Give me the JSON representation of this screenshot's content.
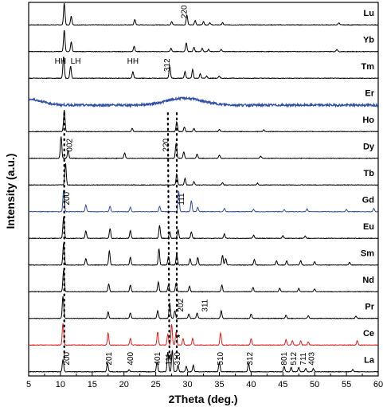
{
  "chart_data": {
    "type": "line",
    "title": "",
    "xlabel": "2Theta (deg.)",
    "ylabel": "Intensity (a.u.)",
    "xlim": [
      5,
      60
    ],
    "x_ticks": [
      5,
      10,
      15,
      20,
      25,
      30,
      35,
      40,
      45,
      50,
      55,
      60
    ],
    "x_tick_labels": [
      "5",
      "10",
      "15",
      "20",
      "25",
      "30",
      "35",
      "40",
      "45",
      "50",
      "55",
      "60"
    ],
    "grid": false,
    "legend": "none (series labeled at right edge)",
    "series": [
      {
        "name": "Lu",
        "color": "#000000",
        "kind": "crystalline",
        "peaks": [
          [
            10.6,
            1.0
          ],
          [
            11.7,
            0.4
          ],
          [
            21.7,
            0.25
          ],
          [
            27.5,
            0.15
          ],
          [
            29.9,
            0.45
          ],
          [
            31.2,
            0.2
          ],
          [
            32.5,
            0.15
          ],
          [
            33.5,
            0.1
          ],
          [
            35.5,
            0.1
          ],
          [
            53.8,
            0.1
          ]
        ]
      },
      {
        "name": "Yb",
        "color": "#000000",
        "kind": "crystalline",
        "peaks": [
          [
            10.6,
            1.0
          ],
          [
            11.7,
            0.45
          ],
          [
            21.6,
            0.25
          ],
          [
            27.4,
            0.15
          ],
          [
            29.8,
            0.4
          ],
          [
            31.0,
            0.2
          ],
          [
            32.3,
            0.15
          ],
          [
            33.3,
            0.1
          ],
          [
            35.3,
            0.1
          ],
          [
            53.5,
            0.1
          ]
        ]
      },
      {
        "name": "Tm",
        "color": "#000000",
        "kind": "crystalline",
        "peaks": [
          [
            10.5,
            1.0
          ],
          [
            11.6,
            0.55
          ],
          [
            21.4,
            0.3
          ],
          [
            27.2,
            0.55
          ],
          [
            29.6,
            0.3
          ],
          [
            30.8,
            0.4
          ],
          [
            32.0,
            0.2
          ],
          [
            33.0,
            0.1
          ],
          [
            35.0,
            0.1
          ]
        ]
      },
      {
        "name": "Er",
        "color": "#3050a8",
        "kind": "amorphous",
        "humps": [
          [
            5,
            0.6,
            3.0
          ],
          [
            29.5,
            0.7,
            4.0
          ]
        ]
      },
      {
        "name": "Ho",
        "color": "#000000",
        "kind": "crystalline",
        "peaks": [
          [
            10.6,
            1.0
          ],
          [
            21.3,
            0.15
          ],
          [
            28.3,
            0.45
          ],
          [
            29.5,
            0.2
          ],
          [
            31.0,
            0.15
          ],
          [
            35.0,
            0.1
          ],
          [
            42.0,
            0.08
          ]
        ]
      },
      {
        "name": "Dy",
        "color": "#000000",
        "kind": "crystalline",
        "peaks": [
          [
            10.1,
            1.0
          ],
          [
            11.2,
            0.35
          ],
          [
            20.1,
            0.25
          ],
          [
            28.2,
            0.7
          ],
          [
            29.4,
            0.3
          ],
          [
            31.5,
            0.2
          ],
          [
            35.0,
            0.15
          ],
          [
            41.5,
            0.1
          ]
        ]
      },
      {
        "name": "Tb",
        "color": "#000000",
        "kind": "crystalline",
        "peaks": [
          [
            10.8,
            1.0
          ],
          [
            28.3,
            0.5
          ],
          [
            29.6,
            0.3
          ],
          [
            31.0,
            0.15
          ],
          [
            35.5,
            0.1
          ],
          [
            41.0,
            0.08
          ]
        ]
      },
      {
        "name": "Gd",
        "color": "#3050a8",
        "kind": "crystalline",
        "peaks": [
          [
            10.5,
            1.0
          ],
          [
            14.0,
            0.3
          ],
          [
            17.8,
            0.25
          ],
          [
            21.0,
            0.2
          ],
          [
            25.6,
            0.25
          ],
          [
            28.6,
            0.95
          ],
          [
            30.6,
            0.5
          ],
          [
            31.6,
            0.2
          ],
          [
            35.8,
            0.15
          ],
          [
            40.4,
            0.1
          ],
          [
            45.2,
            0.1
          ],
          [
            48.8,
            0.12
          ],
          [
            55.0,
            0.1
          ],
          [
            59.3,
            0.15
          ]
        ]
      },
      {
        "name": "Eu",
        "color": "#000000",
        "kind": "crystalline",
        "peaks": [
          [
            10.5,
            1.0
          ],
          [
            14.0,
            0.35
          ],
          [
            17.8,
            0.45
          ],
          [
            21.0,
            0.35
          ],
          [
            25.6,
            0.6
          ],
          [
            27.2,
            0.3
          ],
          [
            28.5,
            0.4
          ],
          [
            30.6,
            0.3
          ],
          [
            35.8,
            0.2
          ],
          [
            40.4,
            0.15
          ],
          [
            45.0,
            0.12
          ],
          [
            48.5,
            0.1
          ]
        ]
      },
      {
        "name": "Sm",
        "color": "#000000",
        "kind": "crystalline",
        "peaks": [
          [
            10.5,
            1.0
          ],
          [
            14.0,
            0.3
          ],
          [
            17.7,
            0.65
          ],
          [
            21.0,
            0.35
          ],
          [
            25.5,
            0.75
          ],
          [
            27.0,
            0.4
          ],
          [
            28.3,
            0.5
          ],
          [
            30.4,
            0.3
          ],
          [
            31.6,
            0.35
          ],
          [
            35.5,
            0.45
          ],
          [
            36.0,
            0.3
          ],
          [
            40.5,
            0.25
          ],
          [
            44.0,
            0.2
          ],
          [
            45.6,
            0.2
          ],
          [
            47.8,
            0.2
          ],
          [
            50.0,
            0.15
          ],
          [
            55.5,
            0.12
          ]
        ]
      },
      {
        "name": "Nd",
        "color": "#000000",
        "kind": "crystalline",
        "peaks": [
          [
            10.5,
            1.0
          ],
          [
            17.6,
            0.35
          ],
          [
            21.0,
            0.3
          ],
          [
            25.4,
            0.45
          ],
          [
            27.0,
            0.3
          ],
          [
            28.2,
            0.4
          ],
          [
            30.3,
            0.25
          ],
          [
            35.4,
            0.3
          ],
          [
            40.3,
            0.2
          ],
          [
            44.5,
            0.15
          ],
          [
            47.5,
            0.15
          ],
          [
            50.0,
            0.12
          ]
        ]
      },
      {
        "name": "Pr",
        "color": "#000000",
        "kind": "crystalline",
        "peaks": [
          [
            10.4,
            1.0
          ],
          [
            17.5,
            0.3
          ],
          [
            21.0,
            0.25
          ],
          [
            25.3,
            0.35
          ],
          [
            27.2,
            0.7
          ],
          [
            28.0,
            0.35
          ],
          [
            30.2,
            0.2
          ],
          [
            31.5,
            0.25
          ],
          [
            35.3,
            0.35
          ],
          [
            40.0,
            0.2
          ],
          [
            45.5,
            0.15
          ],
          [
            49.0,
            0.12
          ],
          [
            56.5,
            0.1
          ]
        ]
      },
      {
        "name": "Ce",
        "color": "#e02020",
        "kind": "crystalline",
        "peaks": [
          [
            10.4,
            1.0
          ],
          [
            17.5,
            0.55
          ],
          [
            21.0,
            0.3
          ],
          [
            25.3,
            0.6
          ],
          [
            26.9,
            0.5
          ],
          [
            27.5,
            0.95
          ],
          [
            28.2,
            0.6
          ],
          [
            29.3,
            0.3
          ],
          [
            30.8,
            0.3
          ],
          [
            35.2,
            0.55
          ],
          [
            40.0,
            0.3
          ],
          [
            45.5,
            0.25
          ],
          [
            46.5,
            0.2
          ],
          [
            47.8,
            0.2
          ],
          [
            49.0,
            0.15
          ],
          [
            56.7,
            0.2
          ]
        ]
      },
      {
        "name": "La",
        "color": "#000000",
        "kind": "crystalline",
        "peaks": [
          [
            10.4,
            0.55
          ],
          [
            17.4,
            0.4
          ],
          [
            20.8,
            0.1
          ],
          [
            25.2,
            0.45
          ],
          [
            26.9,
            0.9
          ],
          [
            27.6,
            1.0
          ],
          [
            28.5,
            0.3
          ],
          [
            29.8,
            0.25
          ],
          [
            30.9,
            0.3
          ],
          [
            35.0,
            0.45
          ],
          [
            39.6,
            0.4
          ],
          [
            45.2,
            0.25
          ],
          [
            46.3,
            0.2
          ],
          [
            47.5,
            0.2
          ],
          [
            48.6,
            0.15
          ],
          [
            49.8,
            0.15
          ],
          [
            56.0,
            0.1
          ]
        ]
      }
    ],
    "annotations": [
      {
        "series": "Lu",
        "text": "220",
        "x": 29.9,
        "rotated": true
      },
      {
        "series": "Tm",
        "text": "HH",
        "x": 10.0,
        "rotated": false
      },
      {
        "series": "Tm",
        "text": "LH",
        "x": 12.4,
        "rotated": false
      },
      {
        "series": "Tm",
        "text": "HH",
        "x": 21.4,
        "rotated": false
      },
      {
        "series": "Tm",
        "text": "312",
        "x": 27.2,
        "rotated": true
      },
      {
        "series": "Dy",
        "text": "002",
        "x": 11.8,
        "rotated": true
      },
      {
        "series": "Dy",
        "text": "220",
        "x": 27.0,
        "rotated": true
      },
      {
        "series": "Gd",
        "text": "200",
        "x": 11.4,
        "rotated": true
      },
      {
        "series": "Gd",
        "text": "111",
        "x": 29.4,
        "rotated": true
      },
      {
        "series": "Pr",
        "text": "202",
        "x": 29.3,
        "rotated": true
      },
      {
        "series": "Pr",
        "text": "311",
        "x": 33.1,
        "rotated": true
      },
      {
        "series": "Ce",
        "text": "*",
        "x": 28.6,
        "rotated": false
      },
      {
        "series": "La",
        "text": "200",
        "x": 11.4,
        "rotated": true
      },
      {
        "series": "La",
        "text": "201",
        "x": 18.0,
        "rotated": true
      },
      {
        "series": "La",
        "text": "400",
        "x": 21.4,
        "rotated": true
      },
      {
        "series": "La",
        "text": "401",
        "x": 25.7,
        "rotated": true
      },
      {
        "series": "La",
        "text": "111",
        "x": 27.4,
        "rotated": true
      },
      {
        "series": "La",
        "text": "310",
        "x": 28.8,
        "rotated": true
      },
      {
        "series": "La",
        "text": "510",
        "x": 35.6,
        "rotated": true
      },
      {
        "series": "La",
        "text": "312",
        "x": 40.2,
        "rotated": true
      },
      {
        "series": "La",
        "text": "801",
        "x": 45.6,
        "rotated": true
      },
      {
        "series": "La",
        "text": "512",
        "x": 47.1,
        "rotated": true
      },
      {
        "series": "La",
        "text": "711",
        "x": 48.6,
        "rotated": true
      },
      {
        "series": "La",
        "text": "403",
        "x": 49.9,
        "rotated": true
      }
    ],
    "dotted_guides_x": [
      10.6,
      26.9,
      28.3
    ]
  }
}
